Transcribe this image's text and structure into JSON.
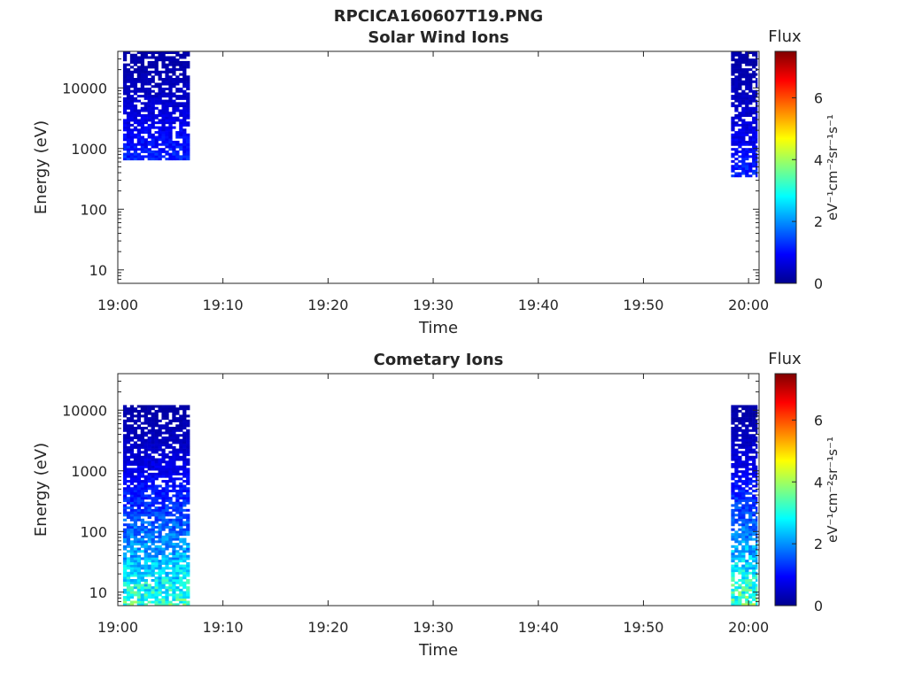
{
  "figure": {
    "title": "RPCICA160607T19.PNG"
  },
  "chart_data": [
    {
      "type": "heatmap",
      "title": "Solar Wind Ions",
      "xlabel": "Time",
      "ylabel": "Energy (eV)",
      "x_ticks": [
        "19:00",
        "19:10",
        "19:20",
        "19:30",
        "19:40",
        "19:50",
        "20:00"
      ],
      "xlim": [
        "19:00",
        "20:01"
      ],
      "y_scale": "log",
      "y_ticks": [
        10,
        100,
        1000,
        10000
      ],
      "y_tick_labels": [
        "10",
        "100",
        "1000",
        "10000"
      ],
      "ylim": [
        6,
        40000
      ],
      "colorbar": {
        "title": "Flux",
        "label": "eV⁻¹cm⁻²sr⁻¹s⁻¹",
        "range": [
          0,
          7.5
        ],
        "ticks": [
          0,
          2,
          4,
          6
        ],
        "colormap": "jet"
      },
      "data_blocks": [
        {
          "time_start": "19:00:30",
          "time_end": "19:06:50",
          "energy_min_eV": 700,
          "energy_max_eV": 40000,
          "flux_min": 0.3,
          "flux_max": 1.2,
          "note": ""
        },
        {
          "time_start": "19:58:20",
          "time_end": "20:00:50",
          "energy_min_eV": 350,
          "energy_max_eV": 40000,
          "flux_min": 0.3,
          "flux_max": 1.2,
          "note": ""
        }
      ],
      "grid": false
    },
    {
      "type": "heatmap",
      "title": "Cometary Ions",
      "xlabel": "Time",
      "ylabel": "Energy (eV)",
      "x_ticks": [
        "19:00",
        "19:10",
        "19:20",
        "19:30",
        "19:40",
        "19:50",
        "20:00"
      ],
      "xlim": [
        "19:00",
        "20:01"
      ],
      "y_scale": "log",
      "y_ticks": [
        10,
        100,
        1000,
        10000
      ],
      "y_tick_labels": [
        "10",
        "100",
        "1000",
        "10000"
      ],
      "ylim": [
        6,
        40000
      ],
      "colorbar": {
        "title": "Flux",
        "label": "eV⁻¹cm⁻²sr⁻¹s⁻¹",
        "range": [
          0,
          7.5
        ],
        "ticks": [
          0,
          2,
          4,
          6
        ],
        "colormap": "jet"
      },
      "data_blocks": [
        {
          "time_start": "19:00:30",
          "time_end": "19:06:50",
          "energy_min_eV": 6,
          "energy_max_eV": 12000,
          "flux_min": 0.3,
          "flux_max": 3.3,
          "note": ""
        },
        {
          "time_start": "19:58:20",
          "time_end": "20:00:50",
          "energy_min_eV": 6,
          "energy_max_eV": 12000,
          "flux_min": 0.3,
          "flux_max": 3.5,
          "note": ""
        }
      ],
      "grid": false
    }
  ]
}
